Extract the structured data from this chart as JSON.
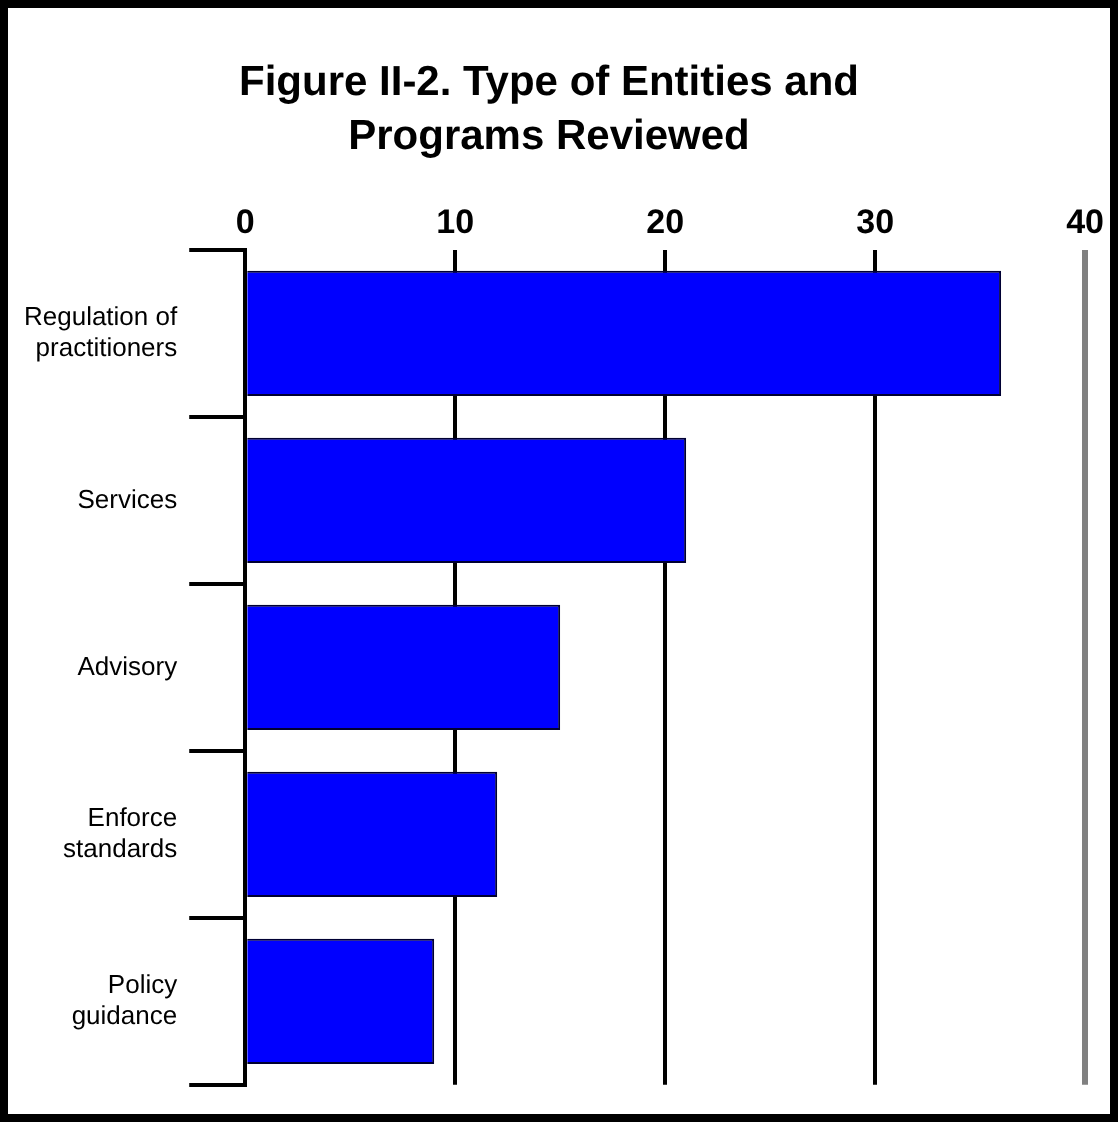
{
  "chart_data": {
    "type": "bar",
    "orientation": "horizontal",
    "title": "Figure II-2. Type of Entities and Programs Reviewed",
    "categories": [
      "Regulation of practitioners",
      "Services",
      "Advisory",
      "Enforce standards",
      "Policy guidance"
    ],
    "values": [
      36,
      21,
      15,
      12,
      9
    ],
    "color": "#0000ff",
    "xlim": [
      0,
      40
    ],
    "xticks": [
      0,
      10,
      20,
      30,
      40
    ],
    "grid": "x",
    "legend": false
  }
}
